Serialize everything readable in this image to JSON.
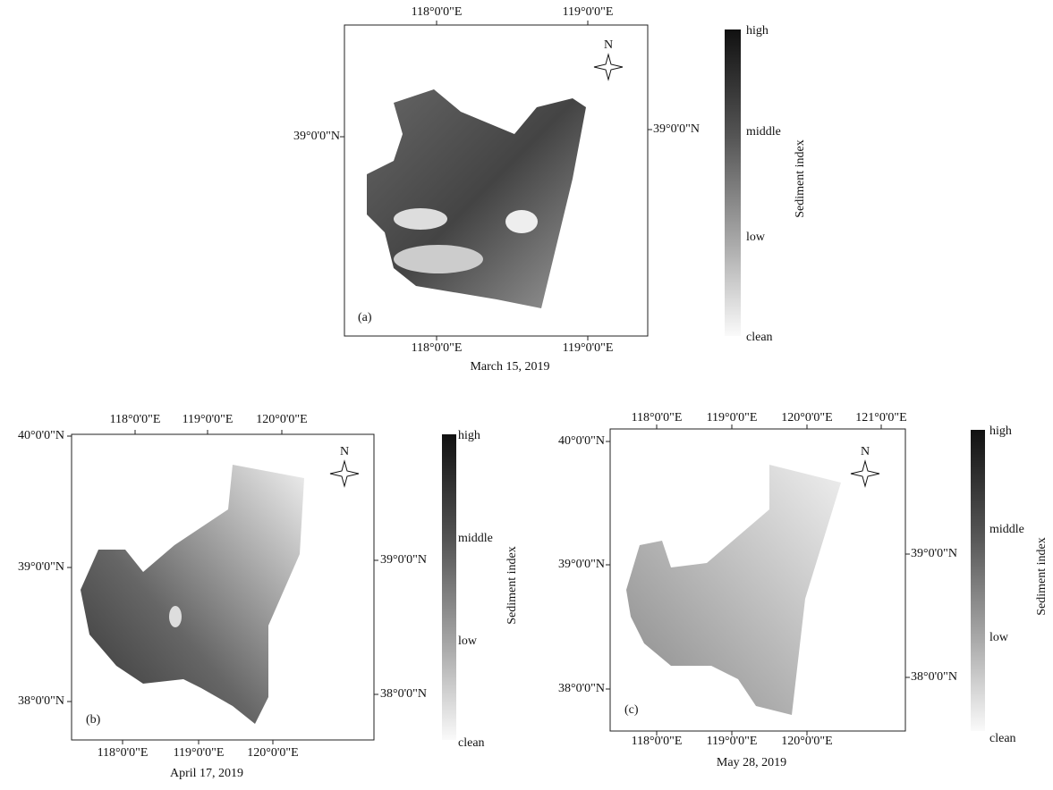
{
  "panels": [
    {
      "label": "(a)",
      "caption": "March 15, 2019",
      "north": "N",
      "top_ticks": [
        "118°0'0\"E",
        "119°0'0\"E"
      ],
      "bottom_ticks": [
        "118°0'0\"E",
        "119°0'0\"E"
      ],
      "left_ticks": [
        "39°0'0\"N"
      ],
      "right_ticks": [
        "39°0'0\"N"
      ],
      "colorbar": {
        "title": "Sediment index",
        "labels": [
          "high",
          "middle",
          "low",
          "clean"
        ]
      }
    },
    {
      "label": "(b)",
      "caption": "April 17, 2019",
      "north": "N",
      "top_ticks": [
        "118°0'0\"E",
        "119°0'0\"E",
        "120°0'0\"E"
      ],
      "bottom_ticks": [
        "118°0'0\"E",
        "119°0'0\"E",
        "120°0'0\"E"
      ],
      "left_ticks": [
        "40°0'0\"N",
        "39°0'0\"N",
        "38°0'0\"N"
      ],
      "right_ticks": [
        "39°0'0\"N",
        "38°0'0\"N"
      ],
      "colorbar": {
        "title": "Sediment index",
        "labels": [
          "high",
          "middle",
          "low",
          "clean"
        ]
      }
    },
    {
      "label": "(c)",
      "caption": "May 28, 2019",
      "north": "N",
      "top_ticks": [
        "118°0'0\"E",
        "119°0'0\"E",
        "120°0'0\"E",
        "121°0'0\"E"
      ],
      "bottom_ticks": [
        "118°0'0\"E",
        "119°0'0\"E",
        "120°0'0\"E"
      ],
      "left_ticks": [
        "40°0'0\"N",
        "39°0'0\"N",
        "38°0'0\"N"
      ],
      "right_ticks": [
        "39°0'0\"N",
        "38°0'0\"N"
      ],
      "colorbar": {
        "title": "Sediment index",
        "labels": [
          "high",
          "middle",
          "low",
          "clean"
        ]
      }
    }
  ]
}
